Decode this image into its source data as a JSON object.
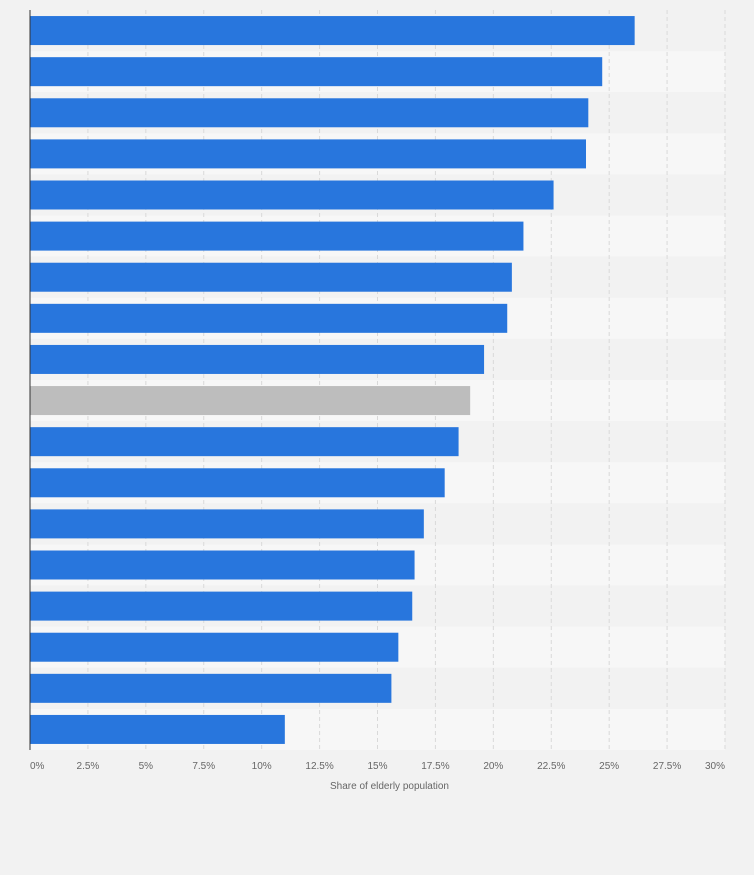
{
  "chart_data": {
    "type": "bar",
    "orientation": "horizontal",
    "categories": [
      "",
      "",
      "",
      "",
      "",
      "",
      "",
      "",
      "",
      "",
      "",
      "",
      "",
      "",
      "",
      "",
      "",
      ""
    ],
    "values": [
      26.1,
      24.7,
      24.1,
      24.0,
      22.6,
      21.3,
      20.8,
      20.6,
      19.6,
      19.0,
      18.5,
      17.9,
      17.0,
      16.6,
      16.5,
      15.9,
      15.6,
      11.0
    ],
    "highlight_index": 9,
    "xlabel": "Share of elderly population",
    "ylabel": "",
    "xlim": [
      0,
      30
    ],
    "ticks": [
      "0%",
      "2.5%",
      "5%",
      "7.5%",
      "10%",
      "12.5%",
      "15%",
      "17.5%",
      "20%",
      "22.5%",
      "25%",
      "27.5%",
      "30%"
    ],
    "tick_values": [
      0,
      2.5,
      5,
      7.5,
      10,
      12.5,
      15,
      17.5,
      20,
      22.5,
      25,
      27.5,
      30
    ],
    "grid": true,
    "colors": {
      "bar": "#2876dd",
      "highlight": "#bdbdbd",
      "background": "#f2f2f2",
      "plot_band_light": "#f7f7f7",
      "plot_band_dark": "#f2f2f2",
      "grid": "#d9d9d9",
      "axis": "#333333",
      "text": "#666666"
    }
  }
}
